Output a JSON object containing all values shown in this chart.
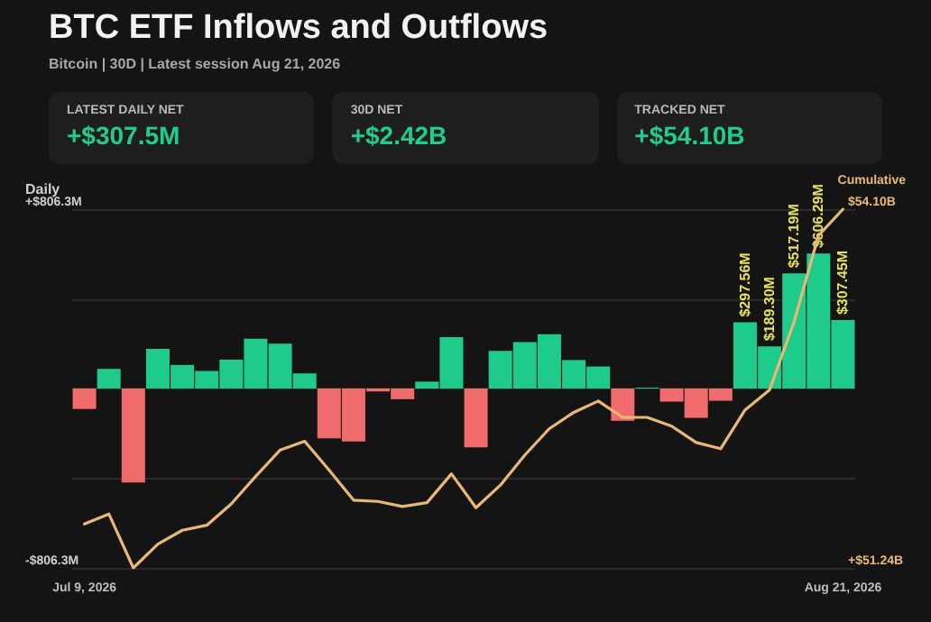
{
  "chart_data": [
    {
      "type": "other",
      "title": "BTC ETF Inflows and Outflows",
      "subtitle": "Bitcoin | 30D | Latest session Aug 21, 2026",
      "annotations": [
        "LATEST DAILY NET",
        "+$307.5M",
        "30D NET",
        "+$2.42B",
        "TRACKED NET",
        "+$54.10B"
      ]
    },
    {
      "type": "bar",
      "ylabel": "Daily",
      "grid": "y",
      "marker": "none",
      "categories": [
        "Jul 9, 2026",
        null,
        null,
        null,
        null,
        null,
        null,
        null,
        null,
        null,
        null,
        null,
        null,
        null,
        null,
        null,
        null,
        null,
        null,
        null,
        null,
        null,
        null,
        null,
        null,
        null,
        null,
        null,
        null,
        null,
        null,
        "Aug 21, 2026"
      ],
      "ylim": [
        -806.3,
        806.3
      ],
      "yticks": [
        {
          "value": -806.3,
          "label": "-$806.3M"
        },
        {
          "value": -403.15,
          "label": null
        },
        {
          "value": 0,
          "label": null
        },
        {
          "value": 403.15,
          "label": null
        },
        {
          "value": 806.3,
          "label": "+$806.3M"
        }
      ],
      "y2lim": [
        51.24,
        54.1
      ],
      "y2ticks": [
        {
          "value": 51.24,
          "label": "+$51.24B"
        },
        {
          "value": 54.1,
          "label": "$54.10B"
        }
      ],
      "series": [
        {
          "type": "bar",
          "values": [
            -92,
            88,
            -422,
            178,
            106,
            79,
            130,
            224,
            202,
            68,
            -224,
            -238,
            -13,
            -48,
            31,
            231,
            -264,
            169,
            209,
            244,
            128,
            99,
            -145,
            4,
            -59,
            -132,
            -55,
            297.56,
            189.3,
            517.19,
            606.29,
            307.45
          ],
          "colors": [
            "#f06b6b",
            "#1fcb8b",
            "#f06b6b",
            "#1fcb8b",
            "#1fcb8b",
            "#1fcb8b",
            "#1fcb8b",
            "#1fcb8b",
            "#1fcb8b",
            "#1fcb8b",
            "#f06b6b",
            "#f06b6b",
            "#f06b6b",
            "#f06b6b",
            "#1fcb8b",
            "#1fcb8b",
            "#f06b6b",
            "#1fcb8b",
            "#1fcb8b",
            "#1fcb8b",
            "#1fcb8b",
            "#1fcb8b",
            "#f06b6b",
            "#1fcb8b",
            "#f06b6b",
            "#f06b6b",
            "#f06b6b",
            "#1fcb8b",
            "#1fcb8b",
            "#1fcb8b",
            "#1fcb8b",
            "#1fcb8b"
          ],
          "value_labels": [
            null,
            null,
            null,
            null,
            null,
            null,
            null,
            null,
            null,
            null,
            null,
            null,
            null,
            null,
            null,
            null,
            null,
            null,
            null,
            null,
            null,
            null,
            null,
            null,
            null,
            null,
            null,
            "$297.56M",
            "$189.30M",
            "$517.19M",
            "$606.29M",
            "$307.45M"
          ]
        },
        {
          "type": "line",
          "name": "Cumulative",
          "axis": "y2",
          "color": "#e9b877",
          "values": [
            51.59,
            51.67,
            51.24,
            51.43,
            51.54,
            51.58,
            51.75,
            51.97,
            52.18,
            52.25,
            52.02,
            51.78,
            51.77,
            51.73,
            51.76,
            51.99,
            51.72,
            51.9,
            52.14,
            52.35,
            52.48,
            52.57,
            52.44,
            52.44,
            52.37,
            52.24,
            52.19,
            52.5,
            52.66,
            53.2,
            53.89,
            54.1
          ]
        }
      ]
    }
  ]
}
